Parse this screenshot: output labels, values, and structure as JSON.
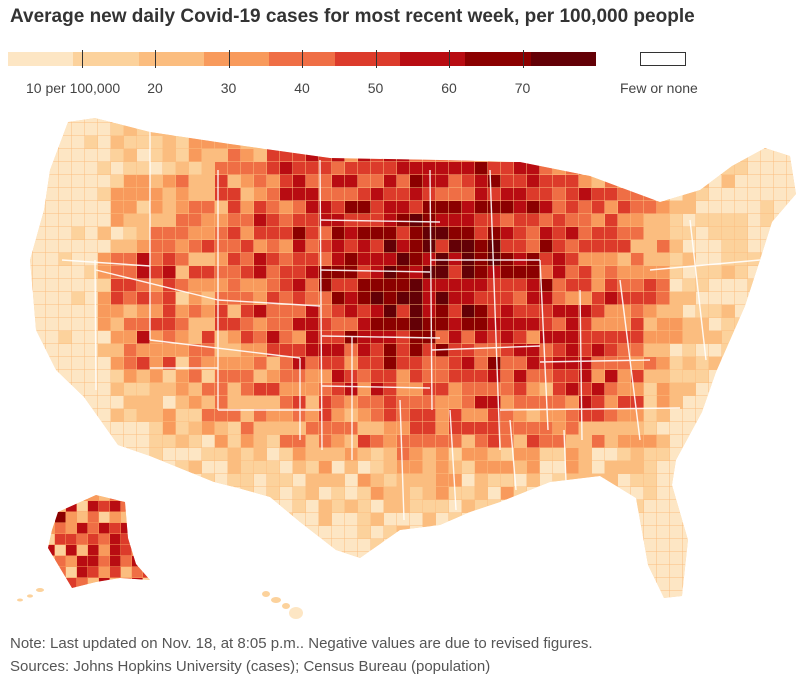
{
  "title": "Average new daily Covid-19 cases for most recent week, per 100,000 people",
  "legend": {
    "colors": [
      "#fde6c4",
      "#fcd29c",
      "#fbbd7f",
      "#f89a5c",
      "#ef6e45",
      "#dc3b2b",
      "#b80c12",
      "#8b0000",
      "#630006"
    ],
    "ticks": [
      {
        "value": 10,
        "label": "10 per 100,000"
      },
      {
        "value": 20,
        "label": "20"
      },
      {
        "value": 30,
        "label": "30"
      },
      {
        "value": 40,
        "label": "40"
      },
      {
        "value": 50,
        "label": "50"
      },
      {
        "value": 60,
        "label": "60"
      },
      {
        "value": 70,
        "label": "70"
      }
    ],
    "none_label": "Few or none",
    "none_color": "#ffffff"
  },
  "map": {
    "type": "choropleth",
    "region": "United States counties",
    "scale": "cases per 100,000 people",
    "colors": {
      "low": "#fde6c4",
      "mid": "#f89a5c",
      "high": "#b80c12",
      "max": "#630006",
      "state_border": "#ffffff"
    }
  },
  "note": "Note: Last updated on Nov. 18, at 8:05 p.m.. Negative values are due to revised figures.",
  "sources": "Sources: Johns Hopkins University (cases); Census Bureau (population)"
}
